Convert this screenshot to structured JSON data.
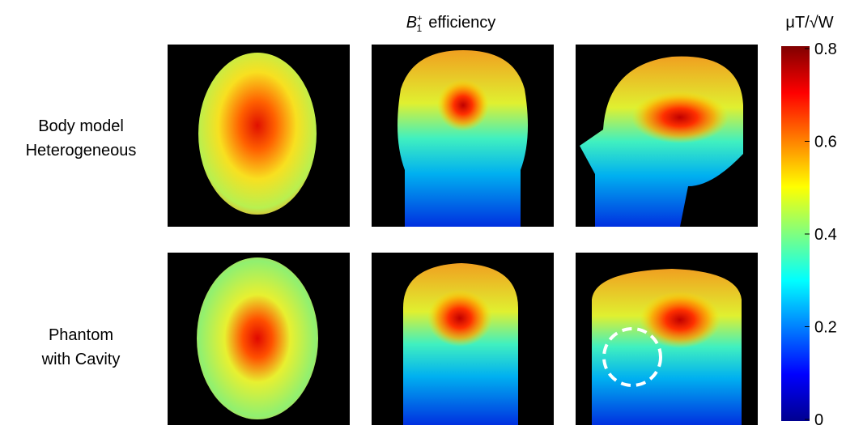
{
  "figure": {
    "title": {
      "symbol": "B",
      "subscript": "1",
      "superscript": "+",
      "text": "efficiency"
    },
    "rows": [
      {
        "label_lines": [
          "Body model",
          "Heterogeneous"
        ]
      },
      {
        "label_lines": [
          "Phantom",
          "with Cavity"
        ]
      }
    ],
    "colorbar": {
      "label": "μT/√W",
      "range": [
        0,
        0.8
      ],
      "ticks": [
        0,
        0.2,
        0.4,
        0.6,
        0.8
      ]
    }
  }
}
